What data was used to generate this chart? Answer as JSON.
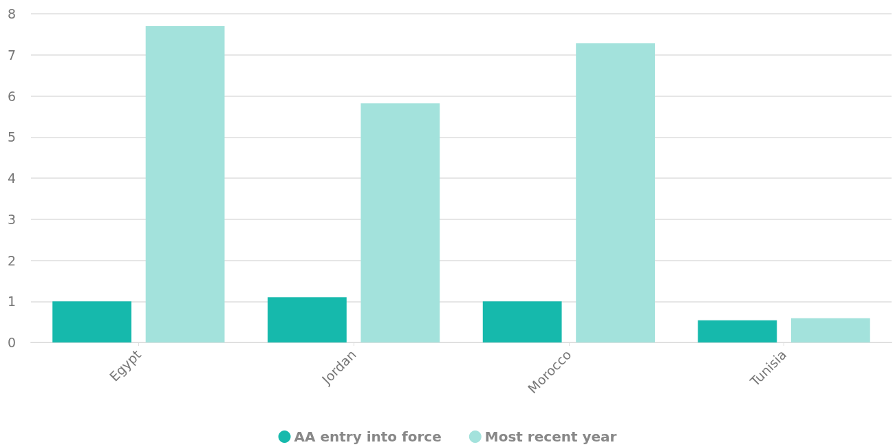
{
  "chart_data": {
    "type": "bar",
    "categories": [
      "Egypt",
      "Jordan",
      "Morocco",
      "Tunisia"
    ],
    "series": [
      {
        "name": "AA entry into force",
        "color": "#16b9ac",
        "values": [
          1.0,
          1.1,
          1.0,
          0.54
        ]
      },
      {
        "name": "Most recent year",
        "color": "#a3e2dc",
        "values": [
          7.7,
          5.82,
          7.28,
          0.59
        ]
      }
    ],
    "ylim": [
      0,
      8
    ],
    "yticks": [
      0,
      1,
      2,
      3,
      4,
      5,
      6,
      7,
      8
    ],
    "grid": "y",
    "legend": "bottom"
  }
}
